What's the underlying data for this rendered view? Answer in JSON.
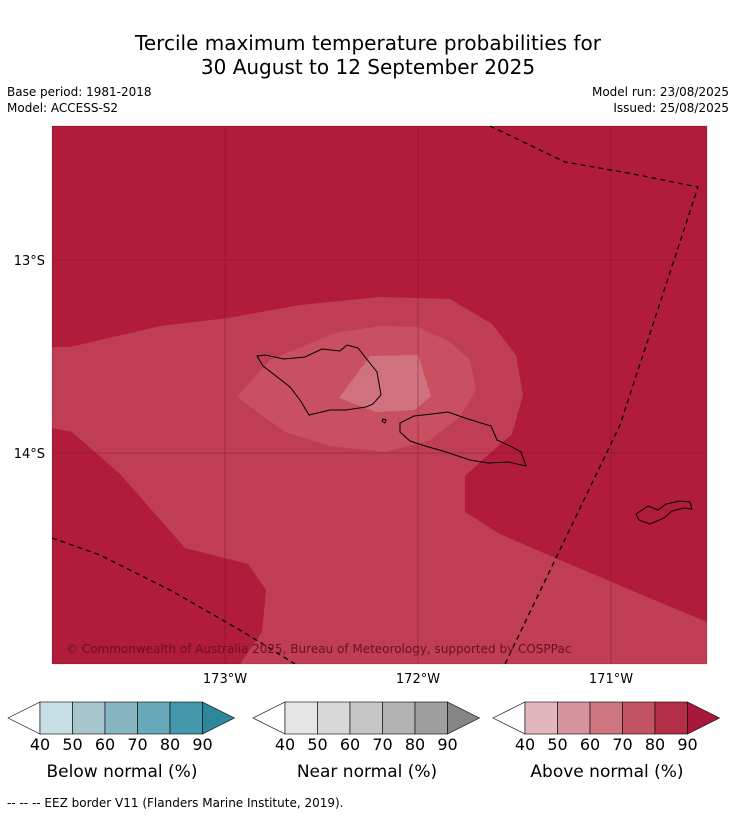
{
  "title": {
    "line1": "Tercile maximum temperature probabilities for",
    "line2": "30 August to 12 September 2025"
  },
  "meta": {
    "base_period": "Base period: 1981-2018",
    "model": "Model: ACCESS-S2",
    "model_run": "Model run: 23/08/2025",
    "issued": "Issued: 25/08/2025"
  },
  "map": {
    "lat_labels": [
      "13°S",
      "14°S"
    ],
    "lon_labels": [
      "173°W",
      "172°W",
      "171°W"
    ],
    "copyright": "© Commonwealth of Australia 2025, Bureau of Meteorology, supported by COSPPac",
    "colors": {
      "above_80_90": "#b01c39",
      "above_70_80": "#bf3e53",
      "above_60_70": "#c85060",
      "above_50_60": "#d0727e"
    }
  },
  "legends": [
    {
      "title": "Below normal (%)",
      "ticks": [
        "40",
        "50",
        "60",
        "70",
        "80",
        "90"
      ],
      "colors": [
        "#ffffff",
        "#c7e0e6",
        "#a6c5cc",
        "#87b6c2",
        "#67a9b8",
        "#4398ab",
        "#2b8799"
      ]
    },
    {
      "title": "Near normal (%)",
      "ticks": [
        "40",
        "50",
        "60",
        "70",
        "80",
        "90"
      ],
      "colors": [
        "#ffffff",
        "#e5e5e5",
        "#d8d8d8",
        "#c6c6c6",
        "#b3b3b3",
        "#9e9e9e",
        "#858585"
      ]
    },
    {
      "title": "Above normal (%)",
      "ticks": [
        "40",
        "50",
        "60",
        "70",
        "80",
        "90"
      ],
      "colors": [
        "#ffffff",
        "#e2b7be",
        "#d6959e",
        "#cd7680",
        "#c45462",
        "#b32f48",
        "#a7183a"
      ]
    }
  ],
  "footnote": "--  --  -- EEZ border V11 (Flanders Marine Institute, 2019)."
}
